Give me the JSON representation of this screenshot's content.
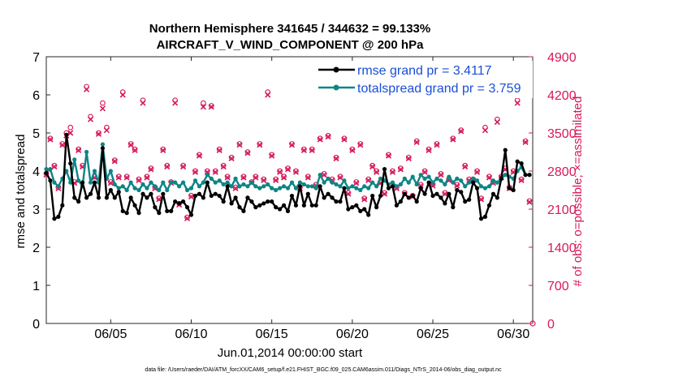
{
  "chart_data": {
    "type": "line",
    "title_line1": "Northern Hemisphere 341645 / 344632 = 99.133%",
    "title_line2": "AIRCRAFT_V_WIND_COMPONENT @ 200 hPa",
    "xlabel": "Jun.01,2014 00:00:00 start",
    "ylabel_left": "rmse and totalspread",
    "ylabel_right": "# of obs: o=possible; ×=assimilated",
    "footer": "data file: /Users/raeder/DAI/ATM_forcXX/CAM6_setup/f.e21.FHIST_BGC.f09_025.CAM6assim.011/Diags_NTrS_2014-06/obs_diag_output.nc",
    "xlim": [
      1,
      31.2
    ],
    "ylim_left": [
      0,
      7
    ],
    "ylim_right": [
      0,
      4900
    ],
    "x_ticks": [
      5,
      10,
      15,
      20,
      25,
      30
    ],
    "x_tick_labels": [
      "06/05",
      "06/10",
      "06/15",
      "06/20",
      "06/25",
      "06/30"
    ],
    "y_left_ticks": [
      0,
      1,
      2,
      3,
      4,
      5,
      6,
      7
    ],
    "y_left_tick_labels": [
      "0",
      "1",
      "2",
      "3",
      "4",
      "5",
      "6",
      "7"
    ],
    "y_right_ticks": [
      0,
      700,
      1400,
      2100,
      2800,
      3500,
      4200,
      4900
    ],
    "y_right_tick_labels": [
      "0",
      "700",
      "1400",
      "2100",
      "2800",
      "3500",
      "4200",
      "4900"
    ],
    "colors": {
      "rmse": "#000000",
      "spread": "#0e8585",
      "obs": "#d6195a",
      "legend_text": "#1a4fd6"
    },
    "series": [
      {
        "name": "rmse grand pr = 3.4117",
        "x": [
          1.0,
          1.25,
          1.5,
          1.75,
          2.0,
          2.25,
          2.5,
          2.75,
          3.0,
          3.25,
          3.5,
          3.75,
          4.0,
          4.25,
          4.5,
          4.75,
          5.0,
          5.25,
          5.5,
          5.75,
          6.0,
          6.25,
          6.5,
          6.75,
          7.0,
          7.25,
          7.5,
          7.75,
          8.0,
          8.25,
          8.5,
          8.75,
          9.0,
          9.25,
          9.5,
          9.75,
          10.0,
          10.25,
          10.5,
          10.75,
          11.0,
          11.25,
          11.5,
          11.75,
          12.0,
          12.25,
          12.5,
          12.75,
          13.0,
          13.25,
          13.5,
          13.75,
          14.0,
          14.25,
          14.5,
          14.75,
          15.0,
          15.25,
          15.5,
          15.75,
          16.0,
          16.25,
          16.5,
          16.75,
          17.0,
          17.25,
          17.5,
          17.75,
          18.0,
          18.25,
          18.5,
          18.75,
          19.0,
          19.25,
          19.5,
          19.75,
          20.0,
          20.25,
          20.5,
          20.75,
          21.0,
          21.25,
          21.5,
          21.75,
          22.0,
          22.25,
          22.5,
          22.75,
          23.0,
          23.25,
          23.5,
          23.75,
          24.0,
          24.25,
          24.5,
          24.75,
          25.0,
          25.25,
          25.5,
          25.75,
          26.0,
          26.25,
          26.5,
          26.75,
          27.0,
          27.25,
          27.5,
          27.75,
          28.0,
          28.25,
          28.5,
          28.75,
          29.0,
          29.25,
          29.5,
          29.75,
          30.0,
          30.25,
          30.5,
          30.75,
          31.0
        ],
        "values": [
          3.95,
          3.75,
          2.75,
          2.8,
          3.1,
          4.95,
          4.2,
          3.3,
          3.2,
          3.7,
          3.3,
          3.4,
          3.7,
          3.3,
          4.6,
          3.3,
          3.5,
          3.3,
          3.45,
          2.95,
          2.9,
          3.3,
          3.1,
          2.9,
          3.4,
          3.3,
          3.4,
          3.05,
          2.9,
          3.4,
          2.95,
          2.95,
          3.2,
          3.15,
          3.2,
          3.05,
          2.85,
          3.35,
          3.4,
          3.3,
          3.7,
          3.35,
          3.4,
          3.35,
          3.2,
          3.6,
          3.15,
          3.3,
          3.05,
          2.95,
          3.3,
          3.2,
          3.05,
          3.1,
          3.15,
          3.2,
          3.2,
          3.05,
          3.0,
          3.1,
          2.95,
          3.35,
          3.1,
          3.6,
          3.1,
          3.4,
          3.1,
          3.1,
          3.6,
          3.3,
          3.4,
          3.3,
          3.2,
          3.2,
          3.55,
          3.0,
          3.05,
          3.1,
          2.95,
          3.0,
          2.85,
          3.35,
          3.05,
          3.35,
          4.05,
          3.55,
          3.6,
          3.1,
          3.2,
          3.4,
          3.3,
          3.35,
          3.2,
          3.55,
          3.4,
          3.7,
          3.35,
          3.4,
          3.3,
          3.15,
          3.4,
          3.05,
          3.5,
          3.45,
          3.2,
          3.25,
          3.7,
          3.55,
          2.75,
          2.8,
          3.1,
          3.4,
          3.3,
          3.8,
          4.55,
          3.55,
          3.5,
          4.25,
          4.2,
          3.9,
          3.9
        ]
      },
      {
        "name": "totalspread grand pr = 3.759",
        "x": [
          1.0,
          1.25,
          1.5,
          1.75,
          2.0,
          2.25,
          2.5,
          2.75,
          3.0,
          3.25,
          3.5,
          3.75,
          4.0,
          4.25,
          4.5,
          4.75,
          5.0,
          5.25,
          5.5,
          5.75,
          6.0,
          6.25,
          6.5,
          6.75,
          7.0,
          7.25,
          7.5,
          7.75,
          8.0,
          8.25,
          8.5,
          8.75,
          9.0,
          9.25,
          9.5,
          9.75,
          10.0,
          10.25,
          10.5,
          10.75,
          11.0,
          11.25,
          11.5,
          11.75,
          12.0,
          12.25,
          12.5,
          12.75,
          13.0,
          13.25,
          13.5,
          13.75,
          14.0,
          14.25,
          14.5,
          14.75,
          15.0,
          15.25,
          15.5,
          15.75,
          16.0,
          16.25,
          16.5,
          16.75,
          17.0,
          17.25,
          17.5,
          17.75,
          18.0,
          18.25,
          18.5,
          18.75,
          19.0,
          19.25,
          19.5,
          19.75,
          20.0,
          20.25,
          20.5,
          20.75,
          21.0,
          21.25,
          21.5,
          21.75,
          22.0,
          22.25,
          22.5,
          22.75,
          23.0,
          23.25,
          23.5,
          23.75,
          24.0,
          24.25,
          24.5,
          24.75,
          25.0,
          25.25,
          25.5,
          25.75,
          26.0,
          26.25,
          26.5,
          26.75,
          27.0,
          27.25,
          27.5,
          27.75,
          28.0,
          28.25,
          28.5,
          28.75,
          29.0,
          29.25,
          29.5,
          29.75,
          30.0,
          30.25,
          30.5,
          30.75,
          31.0
        ],
        "values": [
          4.05,
          4.05,
          3.7,
          3.6,
          3.8,
          4.0,
          3.7,
          4.3,
          3.75,
          3.6,
          4.5,
          3.7,
          4.0,
          3.7,
          4.7,
          3.8,
          4.0,
          3.65,
          3.55,
          3.6,
          3.5,
          3.7,
          3.55,
          3.5,
          3.65,
          3.55,
          3.7,
          3.6,
          3.5,
          3.7,
          3.5,
          3.7,
          3.7,
          3.6,
          3.7,
          3.5,
          3.55,
          3.75,
          3.6,
          3.7,
          3.9,
          3.8,
          3.7,
          3.75,
          3.65,
          3.7,
          3.6,
          3.8,
          3.6,
          3.65,
          3.6,
          3.7,
          3.6,
          3.55,
          3.6,
          3.65,
          3.55,
          3.5,
          3.55,
          3.6,
          3.55,
          3.7,
          3.55,
          3.7,
          3.65,
          3.6,
          3.6,
          3.55,
          3.9,
          3.7,
          3.8,
          3.7,
          3.65,
          3.6,
          3.75,
          3.55,
          3.6,
          3.55,
          3.5,
          3.6,
          3.55,
          3.7,
          3.6,
          3.8,
          3.75,
          3.65,
          3.7,
          3.6,
          3.65,
          3.8,
          3.7,
          3.85,
          3.65,
          3.9,
          3.8,
          3.85,
          3.7,
          3.8,
          3.75,
          3.65,
          3.85,
          3.7,
          3.8,
          3.75,
          3.6,
          3.7,
          3.8,
          3.75,
          3.6,
          3.55,
          3.6,
          3.75,
          3.7,
          3.8,
          3.9,
          3.85,
          3.8,
          4.0,
          4.1,
          3.9,
          3.9
        ]
      },
      {
        "name": "obs possible",
        "axis": "right",
        "marker": "circle",
        "x": [
          1.0,
          1.25,
          1.5,
          1.75,
          2.0,
          2.25,
          2.5,
          2.75,
          3.0,
          3.25,
          3.5,
          3.75,
          4.0,
          4.25,
          4.5,
          4.75,
          5.0,
          5.25,
          5.5,
          5.75,
          6.0,
          6.25,
          6.5,
          6.75,
          7.0,
          7.25,
          7.5,
          7.75,
          8.0,
          8.25,
          8.5,
          8.75,
          9.0,
          9.25,
          9.5,
          9.75,
          10.0,
          10.25,
          10.5,
          10.75,
          11.0,
          11.25,
          11.5,
          11.75,
          12.0,
          12.25,
          12.5,
          12.75,
          13.0,
          13.25,
          13.5,
          13.75,
          14.0,
          14.25,
          14.5,
          14.75,
          15.0,
          15.25,
          15.5,
          15.75,
          16.0,
          16.25,
          16.5,
          16.75,
          17.0,
          17.25,
          17.5,
          17.75,
          18.0,
          18.25,
          18.5,
          18.75,
          19.0,
          19.25,
          19.5,
          19.75,
          20.0,
          20.25,
          20.5,
          20.75,
          21.0,
          21.25,
          21.5,
          21.75,
          22.0,
          22.25,
          22.5,
          22.75,
          23.0,
          23.25,
          23.5,
          23.75,
          24.0,
          24.25,
          24.5,
          24.75,
          25.0,
          25.25,
          25.5,
          25.75,
          26.0,
          26.25,
          26.5,
          26.75,
          27.0,
          27.25,
          27.5,
          27.75,
          28.0,
          28.25,
          28.5,
          28.75,
          29.0,
          29.25,
          29.5,
          29.75,
          30.0,
          30.25,
          30.5,
          30.75,
          31.0
        ],
        "values": [
          2750,
          3400,
          2900,
          2500,
          3300,
          3500,
          3600,
          2600,
          3200,
          2900,
          4350,
          3800,
          2700,
          3500,
          4050,
          3600,
          2600,
          3000,
          2700,
          4250,
          2700,
          3300,
          3200,
          2650,
          4100,
          2700,
          2850,
          2500,
          2300,
          3200,
          2900,
          2600,
          4100,
          2200,
          2900,
          1950,
          2350,
          2800,
          3100,
          4050,
          2800,
          4000,
          2800,
          3200,
          2900,
          2700,
          3050,
          2500,
          3300,
          2700,
          3150,
          2600,
          2700,
          3300,
          2650,
          4250,
          3100,
          2650,
          2800,
          2700,
          2850,
          3300,
          2800,
          2500,
          3200,
          2700,
          3200,
          2550,
          3400,
          2750,
          3450,
          2650,
          3050,
          2700,
          3400,
          2400,
          3200,
          2600,
          3300,
          2300,
          2650,
          2900,
          2800,
          2600,
          2400,
          3100,
          2800,
          2500,
          2850,
          2400,
          3050,
          2350,
          3350,
          2550,
          2800,
          3200,
          2550,
          3300,
          2750,
          2400,
          2650,
          3400,
          2550,
          3550,
          2900,
          2650,
          2650,
          2800,
          2300,
          3600,
          2700,
          2600,
          3750,
          2700,
          2850,
          2500,
          2800,
          4100,
          2650,
          3350,
          2250
        ]
      },
      {
        "name": "obs assimilated",
        "axis": "right",
        "marker": "x",
        "x": [
          1.0,
          1.25,
          1.5,
          1.75,
          2.0,
          2.25,
          2.5,
          2.75,
          3.0,
          3.25,
          3.5,
          3.75,
          4.0,
          4.25,
          4.5,
          4.75,
          5.0,
          5.25,
          5.5,
          5.75,
          6.0,
          6.25,
          6.5,
          6.75,
          7.0,
          7.25,
          7.5,
          7.75,
          8.0,
          8.25,
          8.5,
          8.75,
          9.0,
          9.25,
          9.5,
          9.75,
          10.0,
          10.25,
          10.5,
          10.75,
          11.0,
          11.25,
          11.5,
          11.75,
          12.0,
          12.25,
          12.5,
          12.75,
          13.0,
          13.25,
          13.5,
          13.75,
          14.0,
          14.25,
          14.5,
          14.75,
          15.0,
          15.25,
          15.5,
          15.75,
          16.0,
          16.25,
          16.5,
          16.75,
          17.0,
          17.25,
          17.5,
          17.75,
          18.0,
          18.25,
          18.5,
          18.75,
          19.0,
          19.25,
          19.5,
          19.75,
          20.0,
          20.25,
          20.5,
          20.75,
          21.0,
          21.25,
          21.5,
          21.75,
          22.0,
          22.25,
          22.5,
          22.75,
          23.0,
          23.25,
          23.5,
          23.75,
          24.0,
          24.25,
          24.5,
          24.75,
          25.0,
          25.25,
          25.5,
          25.75,
          26.0,
          26.25,
          26.5,
          26.75,
          27.0,
          27.25,
          27.5,
          27.75,
          28.0,
          28.25,
          28.5,
          28.75,
          29.0,
          29.25,
          29.5,
          29.75,
          30.0,
          30.25,
          30.5,
          30.75,
          31.0
        ],
        "values": [
          2730,
          3380,
          2880,
          2480,
          3280,
          3450,
          3500,
          2580,
          3180,
          2880,
          4300,
          3750,
          2680,
          3480,
          3950,
          3550,
          2580,
          2980,
          2680,
          4200,
          2680,
          3280,
          3180,
          2630,
          4050,
          2680,
          2830,
          2480,
          2280,
          3180,
          2880,
          2580,
          4050,
          2180,
          2880,
          1930,
          2330,
          2780,
          3080,
          3980,
          2780,
          3980,
          2780,
          3180,
          2880,
          2680,
          3030,
          2480,
          3280,
          2680,
          3130,
          2580,
          2680,
          3280,
          2630,
          4200,
          3080,
          2630,
          2780,
          2680,
          2830,
          3280,
          2780,
          2480,
          3180,
          2680,
          3180,
          2530,
          3380,
          2730,
          3430,
          2630,
          3030,
          2680,
          3380,
          2380,
          3180,
          2580,
          3280,
          2280,
          2630,
          2880,
          2780,
          2580,
          2380,
          3080,
          2780,
          2480,
          2830,
          2380,
          3030,
          2330,
          3330,
          2530,
          2780,
          3180,
          2530,
          3280,
          2730,
          2380,
          2630,
          3380,
          2530,
          3530,
          2880,
          2630,
          2630,
          2780,
          2280,
          3550,
          2680,
          2580,
          3700,
          2680,
          2830,
          2480,
          2780,
          4050,
          2630,
          3330,
          2230
        ]
      }
    ]
  }
}
